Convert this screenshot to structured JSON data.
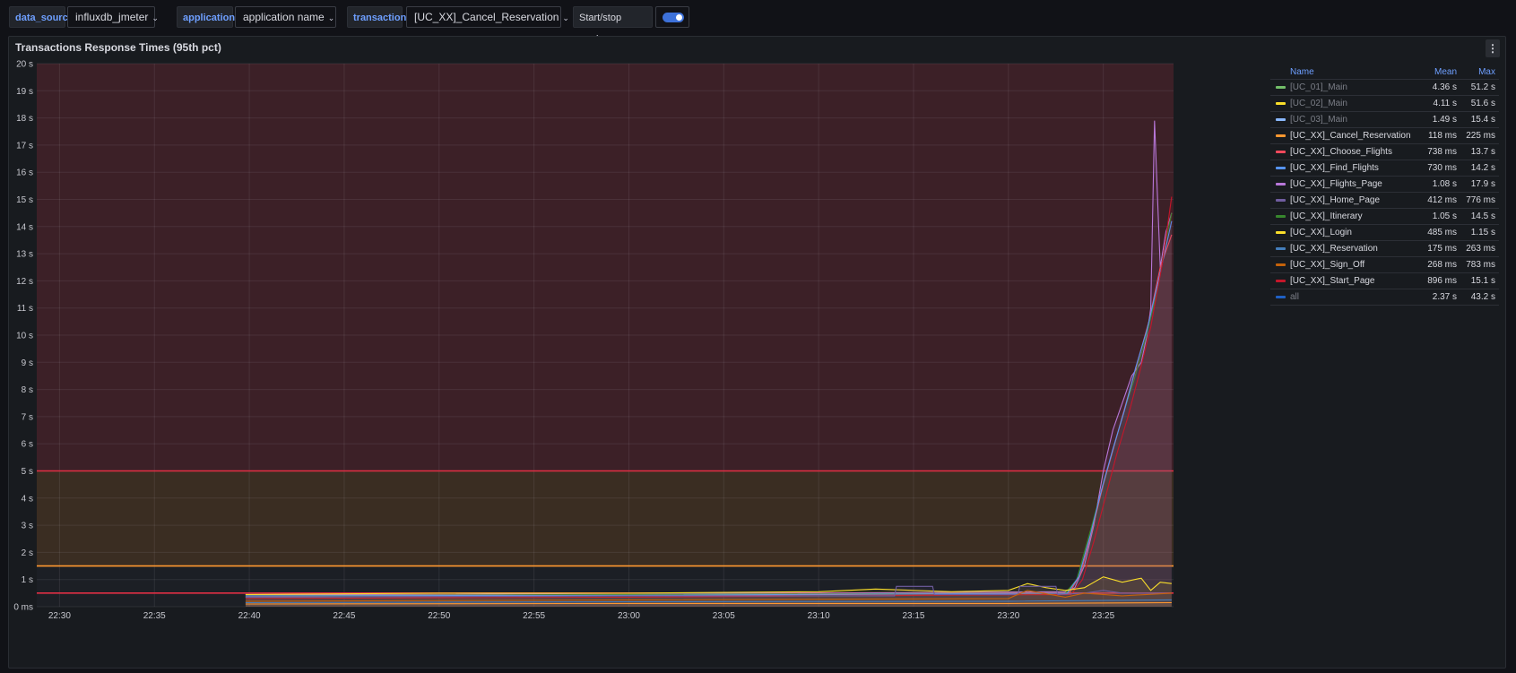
{
  "variables": {
    "data_source": {
      "label": "data_source",
      "value": "influxdb_jmeter"
    },
    "application": {
      "label": "application",
      "value": "application name"
    },
    "transaction": {
      "label": "transaction",
      "value": "[UC_XX]_Cancel_Reservation"
    },
    "marker": {
      "label": "Start/stop marker",
      "enabled": true
    }
  },
  "panel": {
    "title": "Transactions Response Times (95th pct)",
    "menu_icon": "kebab-menu-icon"
  },
  "legend": {
    "headers": {
      "name": "Name",
      "mean": "Mean",
      "max": "Max"
    },
    "rows": [
      {
        "name": "[UC_01]_Main",
        "mean": "4.36 s",
        "max": "51.2 s",
        "color": "#73bf69",
        "dim": true
      },
      {
        "name": "[UC_02]_Main",
        "mean": "4.11 s",
        "max": "51.6 s",
        "color": "#fade2a",
        "dim": true
      },
      {
        "name": "[UC_03]_Main",
        "mean": "1.49 s",
        "max": "15.4 s",
        "color": "#8ab8ff",
        "dim": true
      },
      {
        "name": "[UC_XX]_Cancel_Reservation",
        "mean": "118 ms",
        "max": "225 ms",
        "color": "#ff9830",
        "dim": false
      },
      {
        "name": "[UC_XX]_Choose_Flights",
        "mean": "738 ms",
        "max": "13.7 s",
        "color": "#f2495c",
        "dim": false
      },
      {
        "name": "[UC_XX]_Find_Flights",
        "mean": "730 ms",
        "max": "14.2 s",
        "color": "#5794f2",
        "dim": false
      },
      {
        "name": "[UC_XX]_Flights_Page",
        "mean": "1.08 s",
        "max": "17.9 s",
        "color": "#b877d9",
        "dim": false
      },
      {
        "name": "[UC_XX]_Home_Page",
        "mean": "412 ms",
        "max": "776 ms",
        "color": "#705da0",
        "dim": false
      },
      {
        "name": "[UC_XX]_Itinerary",
        "mean": "1.05 s",
        "max": "14.5 s",
        "color": "#37872d",
        "dim": false
      },
      {
        "name": "[UC_XX]_Login",
        "mean": "485 ms",
        "max": "1.15 s",
        "color": "#fade2a",
        "dim": false
      },
      {
        "name": "[UC_XX]_Reservation",
        "mean": "175 ms",
        "max": "263 ms",
        "color": "#447ebc",
        "dim": false
      },
      {
        "name": "[UC_XX]_Sign_Off",
        "mean": "268 ms",
        "max": "783 ms",
        "color": "#c4620a",
        "dim": false
      },
      {
        "name": "[UC_XX]_Start_Page",
        "mean": "896 ms",
        "max": "15.1 s",
        "color": "#c4162a",
        "dim": false
      },
      {
        "name": "all",
        "mean": "2.37 s",
        "max": "43.2 s",
        "color": "#1f60c4",
        "dim": true
      }
    ]
  },
  "chart_data": {
    "type": "line",
    "title": "Transactions Response Times (95th pct)",
    "y_ticks": [
      "0 ms",
      "1 s",
      "2 s",
      "3 s",
      "4 s",
      "5 s",
      "6 s",
      "7 s",
      "8 s",
      "9 s",
      "10 s",
      "11 s",
      "12 s",
      "13 s",
      "14 s",
      "15 s",
      "16 s",
      "17 s",
      "18 s",
      "19 s",
      "20 s"
    ],
    "x_ticks": [
      "22:30",
      "22:35",
      "22:40",
      "22:45",
      "22:50",
      "22:55",
      "23:00",
      "23:05",
      "23:10",
      "23:15",
      "23:20",
      "23:25"
    ],
    "x_tick_minutes": [
      0,
      5,
      10,
      15,
      20,
      25,
      30,
      35,
      40,
      45,
      50,
      55
    ],
    "x_range_minutes": [
      -1.2,
      58.7
    ],
    "ylim": [
      0,
      20
    ],
    "thresholds": [
      {
        "from": 0,
        "to": 0.5,
        "color": "#1c1f25",
        "line": "#e02f44"
      },
      {
        "from": 0.5,
        "to": 1.5,
        "color": "#1c1f25",
        "line": "#ff9830"
      },
      {
        "from": 1.5,
        "to": 5,
        "color": "#3a2d22",
        "line": "#e02f44"
      },
      {
        "from": 5,
        "to": 20,
        "color": "#3c2027",
        "line": null
      }
    ],
    "series": [
      {
        "name": "[UC_XX]_Flights_Page",
        "color": "#b877d9",
        "x": [
          9.8,
          20,
          30,
          40,
          53,
          53.5,
          54,
          54.5,
          55,
          55.5,
          56,
          56.5,
          57,
          57.3,
          57.5,
          57.7,
          58,
          58.3,
          58.6
        ],
        "y": [
          0.45,
          0.45,
          0.5,
          0.5,
          0.55,
          0.7,
          1.5,
          3,
          5,
          6.5,
          7.5,
          8.5,
          9,
          10,
          11,
          17.9,
          12.5,
          13.8,
          14.5
        ]
      },
      {
        "name": "[UC_XX]_Itinerary",
        "color": "#37872d",
        "x": [
          9.8,
          30,
          53,
          53.6,
          54.2,
          54.8,
          55.4,
          56,
          56.6,
          57.2,
          57.8,
          58.3,
          58.6
        ],
        "y": [
          0.4,
          0.45,
          0.5,
          1,
          2.5,
          4,
          5.5,
          7,
          8.3,
          9.8,
          11.5,
          13.5,
          14.5
        ]
      },
      {
        "name": "[UC_XX]_Choose_Flights",
        "color": "#f2495c",
        "x": [
          9.8,
          30,
          53.2,
          53.8,
          54.4,
          55,
          55.6,
          56.2,
          56.8,
          57.4,
          58,
          58.6
        ],
        "y": [
          0.35,
          0.4,
          0.5,
          1.2,
          2.8,
          4.5,
          6,
          7.5,
          9,
          10.5,
          12.5,
          13.7
        ]
      },
      {
        "name": "[UC_XX]_Find_Flights",
        "color": "#5794f2",
        "x": [
          9.8,
          30,
          53.1,
          53.7,
          54.3,
          54.9,
          55.5,
          56.1,
          56.7,
          57.3,
          57.9,
          58.6
        ],
        "y": [
          0.4,
          0.42,
          0.5,
          1.1,
          2.6,
          4.3,
          5.8,
          7.2,
          8.8,
          10.2,
          12,
          14.2
        ]
      },
      {
        "name": "[UC_XX]_Start_Page",
        "color": "#c4162a",
        "x": [
          9.8,
          30,
          53.3,
          53.9,
          54.5,
          55.1,
          55.7,
          56.3,
          56.9,
          57.5,
          58.1,
          58.6
        ],
        "y": [
          0.3,
          0.35,
          0.45,
          1,
          2.4,
          4,
          5.6,
          7,
          8.6,
          10.3,
          12.6,
          15.1
        ]
      },
      {
        "name": "[UC_XX]_Login",
        "color": "#fade2a",
        "x": [
          9.8,
          20,
          30,
          40,
          43,
          45,
          47,
          50,
          51,
          52,
          53,
          54,
          55,
          56,
          57,
          57.5,
          58,
          58.6
        ],
        "y": [
          0.45,
          0.5,
          0.5,
          0.55,
          0.65,
          0.6,
          0.55,
          0.6,
          0.85,
          0.7,
          0.6,
          0.7,
          1.1,
          0.9,
          1.05,
          0.6,
          0.9,
          0.85
        ]
      },
      {
        "name": "[UC_XX]_Home_Page",
        "color": "#705da0",
        "x": [
          9.8,
          30,
          44,
          44.1,
          46,
          46.1,
          50.5,
          50.6,
          52.5,
          52.6,
          54,
          55,
          56,
          58.6
        ],
        "y": [
          0.35,
          0.4,
          0.4,
          0.75,
          0.75,
          0.45,
          0.45,
          0.75,
          0.75,
          0.45,
          0.5,
          0.6,
          0.5,
          0.5
        ]
      },
      {
        "name": "[UC_XX]_Sign_Off",
        "color": "#c4620a",
        "x": [
          9.8,
          30,
          50,
          51,
          53,
          54,
          56,
          58.6
        ],
        "y": [
          0.2,
          0.25,
          0.3,
          0.6,
          0.35,
          0.5,
          0.4,
          0.5
        ]
      },
      {
        "name": "[UC_XX]_Reservation",
        "color": "#447ebc",
        "x": [
          9.8,
          30,
          50,
          58.6
        ],
        "y": [
          0.15,
          0.18,
          0.2,
          0.25
        ]
      },
      {
        "name": "[UC_XX]_Cancel_Reservation",
        "color": "#ff9830",
        "x": [
          9.8,
          30,
          50,
          58.6
        ],
        "y": [
          0.1,
          0.12,
          0.12,
          0.15
        ]
      }
    ]
  }
}
